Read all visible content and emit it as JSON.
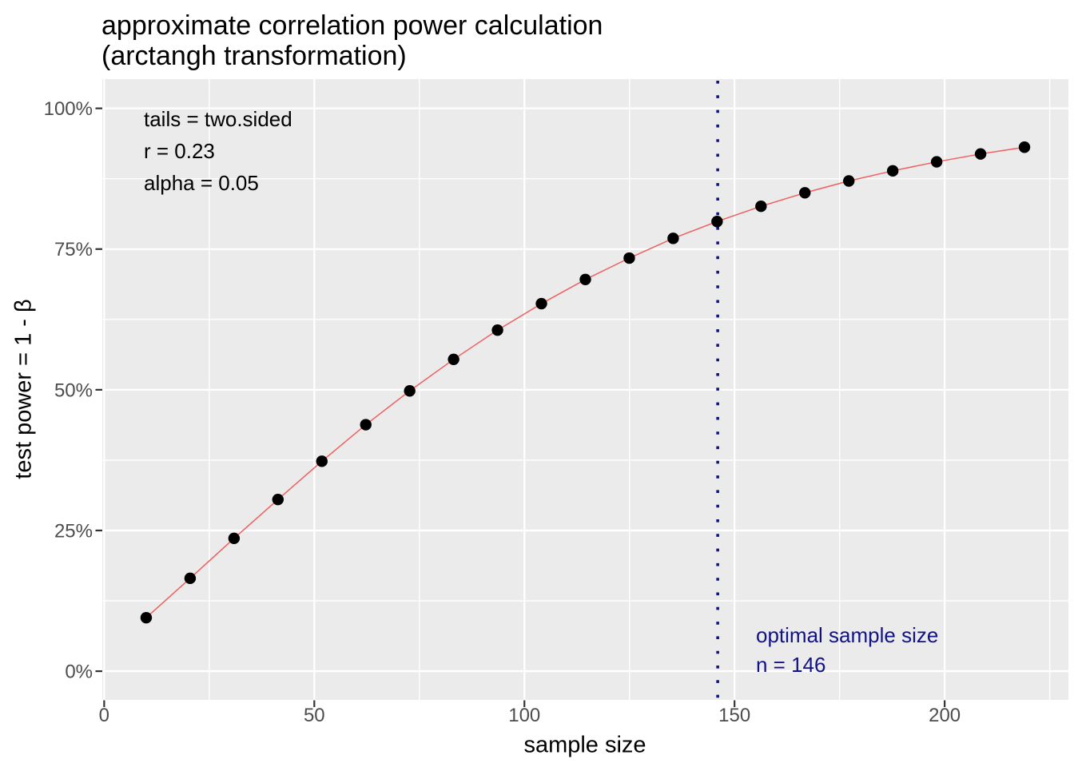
{
  "title": {
    "line1": "approximate correlation power calculation",
    "line2": "(arctangh transformation)"
  },
  "x_axis": {
    "label": "sample size",
    "tick_labels": [
      "0",
      "50",
      "100",
      "150",
      "200"
    ]
  },
  "y_axis": {
    "label": "test power = 1 - β",
    "tick_labels": [
      "0%",
      "25%",
      "50%",
      "75%",
      "100%"
    ]
  },
  "panel_annotations": {
    "tails": "tails = two.sided",
    "r": "r = 0.23",
    "alpha": "alpha = 0.05"
  },
  "optimal_annotation": {
    "line1": "optimal sample size",
    "line2": "n = 146"
  },
  "colors": {
    "panel_bg": "#EBEBEB",
    "grid": "#FFFFFF",
    "curve_line": "#F15F5F",
    "point": "#000000",
    "vline": "#121288",
    "tick_mark": "#333333",
    "tick_text": "#4D4D4D",
    "text": "#000000"
  },
  "chart_data": {
    "type": "line",
    "title": "approximate correlation power calculation (arctangh transformation)",
    "xlabel": "sample size",
    "ylabel": "test power = 1 - β",
    "x": [
      10,
      20.45,
      30.9,
      41.35,
      51.8,
      62.25,
      72.7,
      83.15,
      93.6,
      104.05,
      114.5,
      124.95,
      135.4,
      145.85,
      156.3,
      166.75,
      177.2,
      187.65,
      198.1,
      208.55,
      219
    ],
    "y_percent": [
      9.5,
      16.5,
      23.6,
      30.5,
      37.3,
      43.8,
      49.8,
      55.4,
      60.6,
      65.3,
      69.6,
      73.4,
      76.9,
      79.9,
      82.6,
      85.0,
      87.1,
      88.9,
      90.5,
      91.9,
      93.1
    ],
    "x_ticks": [
      0,
      50,
      100,
      150,
      200
    ],
    "x_minor_ticks": [
      25,
      75,
      125,
      175,
      225
    ],
    "y_ticks_percent": [
      0,
      25,
      50,
      75,
      100
    ],
    "y_minor_ticks_percent": [
      12.5,
      37.5,
      62.5,
      87.5
    ],
    "xlim": [
      -0.45,
      229.45
    ],
    "ylim_percent": [
      -5.1,
      105.2
    ],
    "vline_x": 146,
    "grid": "white major and minor gridlines on grey panel",
    "legend": "none",
    "annotations": [
      "tails = two.sided",
      "r = 0.23",
      "alpha = 0.05",
      "optimal sample size n = 146"
    ]
  }
}
